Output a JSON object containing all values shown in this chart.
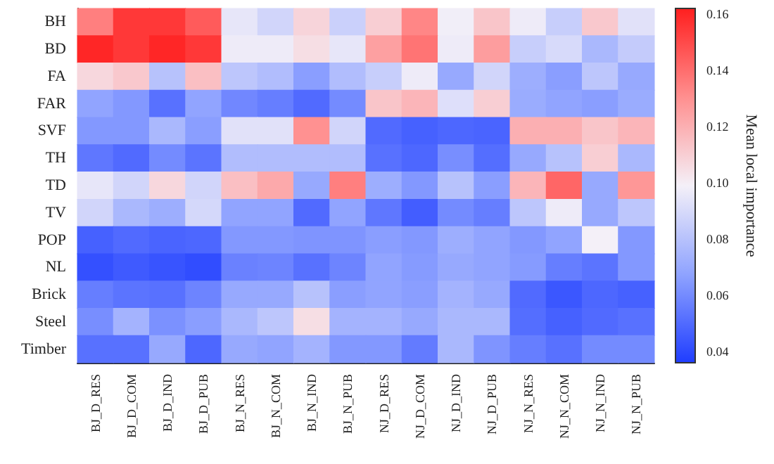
{
  "chart_data": {
    "type": "heatmap",
    "clabel": "Mean local importance",
    "categories": [
      "BJ_D_RES",
      "BJ_D_COM",
      "BJ_D_IND",
      "BJ_D_PUB",
      "BJ_N_RES",
      "BJ_N_COM",
      "BJ_N_IND",
      "BJ_N_PUB",
      "NJ_D_RES",
      "NJ_D_COM",
      "NJ_D_IND",
      "NJ_D_PUB",
      "NJ_N_RES",
      "NJ_N_COM",
      "NJ_N_IND",
      "NJ_N_PUB"
    ],
    "y_categories": [
      "BH",
      "BD",
      "FA",
      "FAR",
      "SVF",
      "TH",
      "TD",
      "TV",
      "POP",
      "NL",
      "Brick",
      "Steel",
      "Timber"
    ],
    "cells": [
      [
        0.135,
        0.155,
        0.155,
        0.145,
        0.095,
        0.088,
        0.108,
        0.086,
        0.11,
        0.133,
        0.098,
        0.113,
        0.097,
        0.085,
        0.112,
        0.093
      ],
      [
        0.16,
        0.155,
        0.16,
        0.155,
        0.097,
        0.097,
        0.105,
        0.095,
        0.125,
        0.138,
        0.097,
        0.126,
        0.085,
        0.09,
        0.076,
        0.084
      ],
      [
        0.107,
        0.112,
        0.08,
        0.115,
        0.082,
        0.078,
        0.066,
        0.078,
        0.085,
        0.097,
        0.07,
        0.088,
        0.072,
        0.066,
        0.082,
        0.07
      ],
      [
        0.068,
        0.064,
        0.052,
        0.068,
        0.059,
        0.056,
        0.05,
        0.06,
        0.113,
        0.118,
        0.092,
        0.11,
        0.071,
        0.068,
        0.066,
        0.071
      ],
      [
        0.064,
        0.064,
        0.076,
        0.066,
        0.093,
        0.093,
        0.13,
        0.088,
        0.05,
        0.047,
        0.049,
        0.048,
        0.12,
        0.12,
        0.113,
        0.118
      ],
      [
        0.054,
        0.05,
        0.06,
        0.053,
        0.078,
        0.078,
        0.078,
        0.078,
        0.052,
        0.049,
        0.061,
        0.051,
        0.07,
        0.08,
        0.11,
        0.076
      ],
      [
        0.095,
        0.088,
        0.107,
        0.088,
        0.115,
        0.122,
        0.07,
        0.135,
        0.072,
        0.064,
        0.08,
        0.066,
        0.118,
        0.142,
        0.07,
        0.128
      ],
      [
        0.088,
        0.076,
        0.072,
        0.089,
        0.068,
        0.068,
        0.05,
        0.068,
        0.054,
        0.046,
        0.06,
        0.056,
        0.082,
        0.097,
        0.07,
        0.082
      ],
      [
        0.047,
        0.05,
        0.048,
        0.049,
        0.064,
        0.064,
        0.063,
        0.063,
        0.066,
        0.064,
        0.072,
        0.068,
        0.064,
        0.068,
        0.099,
        0.064
      ],
      [
        0.042,
        0.045,
        0.043,
        0.041,
        0.057,
        0.058,
        0.052,
        0.058,
        0.068,
        0.065,
        0.07,
        0.068,
        0.065,
        0.056,
        0.053,
        0.064
      ],
      [
        0.056,
        0.053,
        0.052,
        0.058,
        0.07,
        0.07,
        0.08,
        0.066,
        0.068,
        0.066,
        0.074,
        0.07,
        0.05,
        0.044,
        0.049,
        0.047
      ],
      [
        0.061,
        0.074,
        0.062,
        0.066,
        0.076,
        0.082,
        0.105,
        0.074,
        0.074,
        0.07,
        0.076,
        0.076,
        0.051,
        0.047,
        0.05,
        0.052
      ],
      [
        0.052,
        0.052,
        0.07,
        0.049,
        0.07,
        0.068,
        0.074,
        0.064,
        0.064,
        0.055,
        0.076,
        0.063,
        0.056,
        0.052,
        0.06,
        0.06
      ]
    ],
    "clim": [
      0.036,
      0.162
    ],
    "cticks": [
      0.04,
      0.06,
      0.08,
      {
        "value": 0.1,
        "label": "0.10"
      },
      0.12,
      0.14,
      0.16
    ]
  }
}
